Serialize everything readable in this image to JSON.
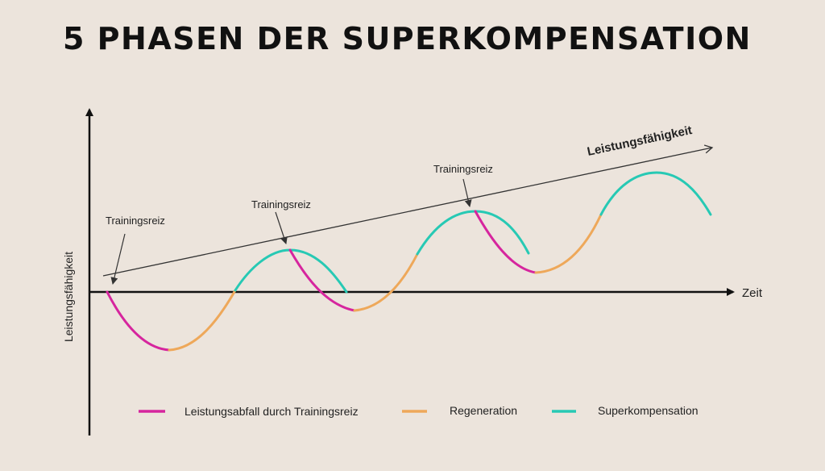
{
  "title": "5 PHASEN DER SUPERKOMPENSATION",
  "y_axis_label": "Leistungsfähigkeit",
  "x_axis_label": "Zeit",
  "trend_label": "Leistungsfähigkeit",
  "annotations": [
    "Trainingsreiz",
    "Trainingsreiz",
    "Trainingsreiz"
  ],
  "legend": [
    {
      "label": "Leistungsabfall durch Trainingsreiz",
      "color": "#d6259e"
    },
    {
      "label": "Regeneration",
      "color": "#eea85a"
    },
    {
      "label": "Superkompensation",
      "color": "#27c9b4"
    }
  ],
  "colors": {
    "background": "#ece4dc",
    "axis": "#111111",
    "trend": "#333333"
  }
}
